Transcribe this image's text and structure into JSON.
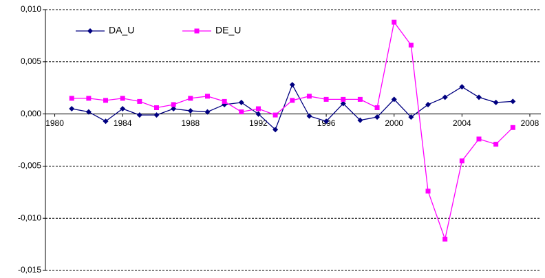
{
  "chart_data": {
    "type": "line",
    "x": [
      1981,
      1982,
      1983,
      1984,
      1985,
      1986,
      1987,
      1988,
      1989,
      1990,
      1991,
      1992,
      1993,
      1994,
      1995,
      1996,
      1997,
      1998,
      1999,
      2000,
      2001,
      2002,
      2003,
      2004,
      2005,
      2006,
      2007
    ],
    "series": [
      {
        "name": "DA_U",
        "color": "#000080",
        "marker": "diamond",
        "values": [
          0.0005,
          0.0002,
          -0.0007,
          0.0005,
          -0.0001,
          -0.0001,
          0.0005,
          0.0003,
          0.0002,
          0.0009,
          0.0011,
          0.0,
          -0.0015,
          0.0028,
          -0.0002,
          -0.0007,
          0.001,
          -0.0006,
          -0.0003,
          0.0014,
          -0.0003,
          0.0009,
          0.0016,
          0.0026,
          0.0016,
          0.0011,
          0.0012
        ]
      },
      {
        "name": "DE_U",
        "color": "#ff00ff",
        "marker": "square",
        "values": [
          0.0015,
          0.0015,
          0.0013,
          0.0015,
          0.0012,
          0.0006,
          0.0009,
          0.0015,
          0.0017,
          0.0012,
          0.0002,
          0.0005,
          -0.0001,
          0.0013,
          0.0017,
          0.0014,
          0.0014,
          0.0014,
          0.0006,
          0.0088,
          0.0066,
          -0.0074,
          -0.012,
          -0.0045,
          -0.0024,
          -0.0029,
          -0.0013
        ]
      }
    ],
    "xlim": [
      1979.45,
      2008.65
    ],
    "xticks": [
      1980,
      1984,
      1988,
      1992,
      1996,
      2000,
      2004,
      2008
    ],
    "ylim": [
      -0.015,
      0.01
    ],
    "yticks": [
      {
        "value": -0.015,
        "label": "-0,015"
      },
      {
        "value": -0.01,
        "label": "-0,010"
      },
      {
        "value": -0.005,
        "label": "-0,005"
      },
      {
        "value": 0,
        "label": "0,000"
      },
      {
        "value": 0.005,
        "label": "0,005"
      },
      {
        "value": 0.01,
        "label": "0,010"
      }
    ],
    "grid": true,
    "legend": "top-left"
  }
}
